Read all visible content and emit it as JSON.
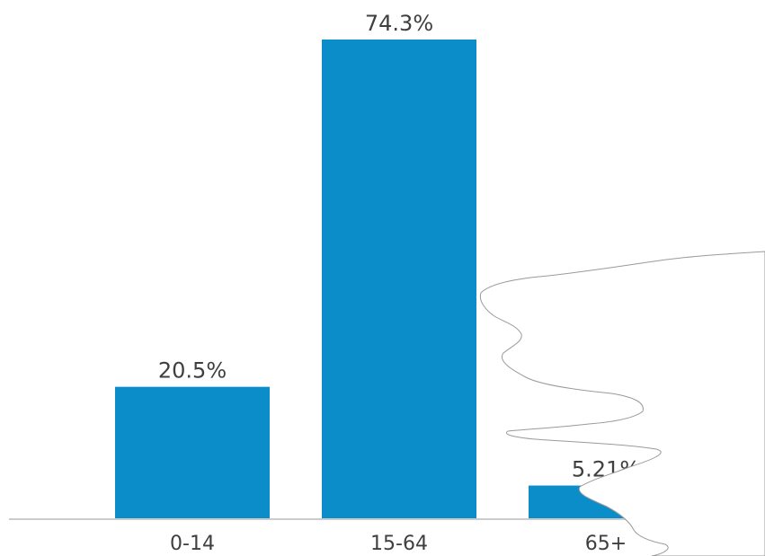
{
  "chart_data": {
    "type": "bar",
    "categories": [
      "0-14",
      "15-64",
      "65+"
    ],
    "values": [
      20.5,
      74.3,
      5.21
    ],
    "value_labels": [
      "20.5%",
      "74.3%",
      "5.21%"
    ],
    "title": "",
    "xlabel": "",
    "ylabel": "",
    "ylim": [
      0,
      74.3
    ],
    "grid": false,
    "legend": "none",
    "colors": {
      "bar": "#0b8dca",
      "baseline": "#cccccc",
      "text": "#3f3f3f"
    }
  }
}
